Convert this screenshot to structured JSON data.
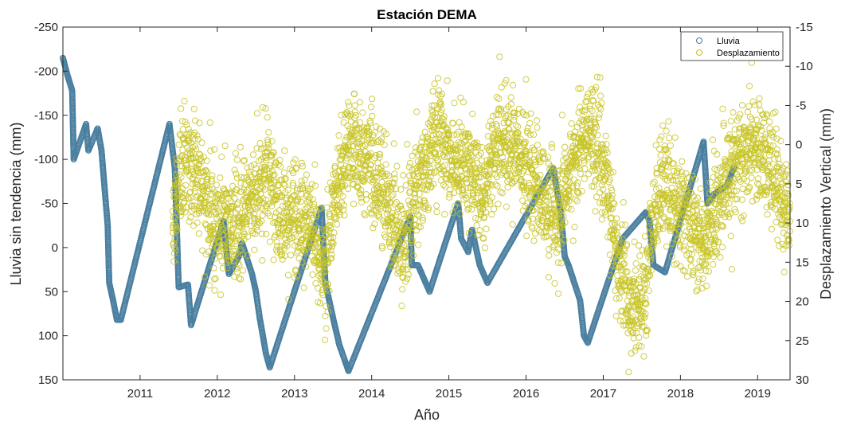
{
  "chart_data": {
    "type": "scatter",
    "title": "Estación DEMA",
    "xlabel": "Año",
    "ylabel_left": "Lluvia sin tendencia (mm)",
    "ylabel_right": "Desplazamiento Vertical (mm)",
    "xlim": [
      2010.0,
      2019.42
    ],
    "ylim_left": [
      -250,
      150
    ],
    "ylim_right": [
      30,
      -15
    ],
    "right_axis_reversed": true,
    "x_ticks": [
      2011,
      2012,
      2013,
      2014,
      2015,
      2016,
      2017,
      2018,
      2019
    ],
    "y_ticks_left": [
      150,
      100,
      50,
      0,
      -50,
      -100,
      -150,
      -200,
      -250
    ],
    "y_ticks_right": [
      -15,
      -10,
      -5,
      0,
      5,
      10,
      15,
      20,
      25,
      30
    ],
    "grid": false,
    "legend_position": "top-right",
    "marker": "open-circle",
    "series": [
      {
        "name": "Lluvia",
        "axis": "left",
        "color": "#4a7fa0",
        "keypoints": [
          [
            2010.0,
            -215
          ],
          [
            2010.06,
            -195
          ],
          [
            2010.12,
            -178
          ],
          [
            2010.14,
            -100
          ],
          [
            2010.3,
            -140
          ],
          [
            2010.33,
            -110
          ],
          [
            2010.45,
            -135
          ],
          [
            2010.5,
            -110
          ],
          [
            2010.58,
            -25
          ],
          [
            2010.6,
            40
          ],
          [
            2010.65,
            60
          ],
          [
            2010.7,
            82
          ],
          [
            2010.75,
            82
          ],
          [
            2011.38,
            -140
          ],
          [
            2011.45,
            -90
          ],
          [
            2011.5,
            45
          ],
          [
            2011.62,
            42
          ],
          [
            2011.66,
            88
          ],
          [
            2012.08,
            -30
          ],
          [
            2012.15,
            30
          ],
          [
            2012.28,
            10
          ],
          [
            2012.32,
            -5
          ],
          [
            2012.45,
            30
          ],
          [
            2012.5,
            50
          ],
          [
            2012.55,
            80
          ],
          [
            2012.63,
            120
          ],
          [
            2012.68,
            136
          ],
          [
            2013.35,
            -45
          ],
          [
            2013.4,
            40
          ],
          [
            2013.5,
            80
          ],
          [
            2013.58,
            110
          ],
          [
            2013.66,
            130
          ],
          [
            2013.7,
            140
          ],
          [
            2014.5,
            -35
          ],
          [
            2014.52,
            20
          ],
          [
            2014.6,
            20
          ],
          [
            2014.7,
            40
          ],
          [
            2014.75,
            50
          ],
          [
            2015.12,
            -50
          ],
          [
            2015.16,
            -10
          ],
          [
            2015.25,
            5
          ],
          [
            2015.3,
            -20
          ],
          [
            2015.4,
            20
          ],
          [
            2015.5,
            40
          ],
          [
            2016.35,
            -90
          ],
          [
            2016.45,
            -40
          ],
          [
            2016.5,
            10
          ],
          [
            2016.55,
            20
          ],
          [
            2016.7,
            60
          ],
          [
            2016.75,
            100
          ],
          [
            2016.8,
            108
          ],
          [
            2017.25,
            -10
          ],
          [
            2017.55,
            -40
          ],
          [
            2017.6,
            -30
          ],
          [
            2017.65,
            20
          ],
          [
            2017.8,
            28
          ],
          [
            2018.3,
            -120
          ],
          [
            2018.35,
            -50
          ],
          [
            2018.43,
            -60
          ],
          [
            2018.6,
            -70
          ],
          [
            2018.7,
            -92
          ]
        ]
      },
      {
        "name": "Desplazamiento",
        "axis": "right",
        "color": "#c8c427",
        "trend": [
          [
            2011.42,
            12
          ],
          [
            2011.55,
            2
          ],
          [
            2011.7,
            3
          ],
          [
            2011.9,
            9
          ],
          [
            2012.1,
            10
          ],
          [
            2012.3,
            9
          ],
          [
            2012.5,
            6
          ],
          [
            2012.65,
            3
          ],
          [
            2012.8,
            9
          ],
          [
            2013.0,
            9
          ],
          [
            2013.2,
            10
          ],
          [
            2013.4,
            17
          ],
          [
            2013.55,
            4
          ],
          [
            2013.7,
            0
          ],
          [
            2013.9,
            1
          ],
          [
            2014.1,
            5
          ],
          [
            2014.3,
            9
          ],
          [
            2014.4,
            14
          ],
          [
            2014.6,
            5
          ],
          [
            2014.75,
            1
          ],
          [
            2014.9,
            -1
          ],
          [
            2015.1,
            2
          ],
          [
            2015.3,
            3
          ],
          [
            2015.45,
            7
          ],
          [
            2015.6,
            -1
          ],
          [
            2015.8,
            -1
          ],
          [
            2016.0,
            3
          ],
          [
            2016.2,
            7
          ],
          [
            2016.4,
            10
          ],
          [
            2016.55,
            5
          ],
          [
            2016.7,
            0
          ],
          [
            2016.85,
            -2
          ],
          [
            2017.0,
            3
          ],
          [
            2017.2,
            15
          ],
          [
            2017.4,
            21
          ],
          [
            2017.55,
            19
          ],
          [
            2017.65,
            9
          ],
          [
            2017.8,
            4
          ],
          [
            2017.95,
            8
          ],
          [
            2018.1,
            9
          ],
          [
            2018.3,
            13
          ],
          [
            2018.45,
            9
          ],
          [
            2018.6,
            4
          ],
          [
            2018.8,
            1
          ],
          [
            2018.95,
            0
          ],
          [
            2019.1,
            2
          ],
          [
            2019.25,
            5
          ],
          [
            2019.42,
            10
          ]
        ]
      }
    ]
  }
}
